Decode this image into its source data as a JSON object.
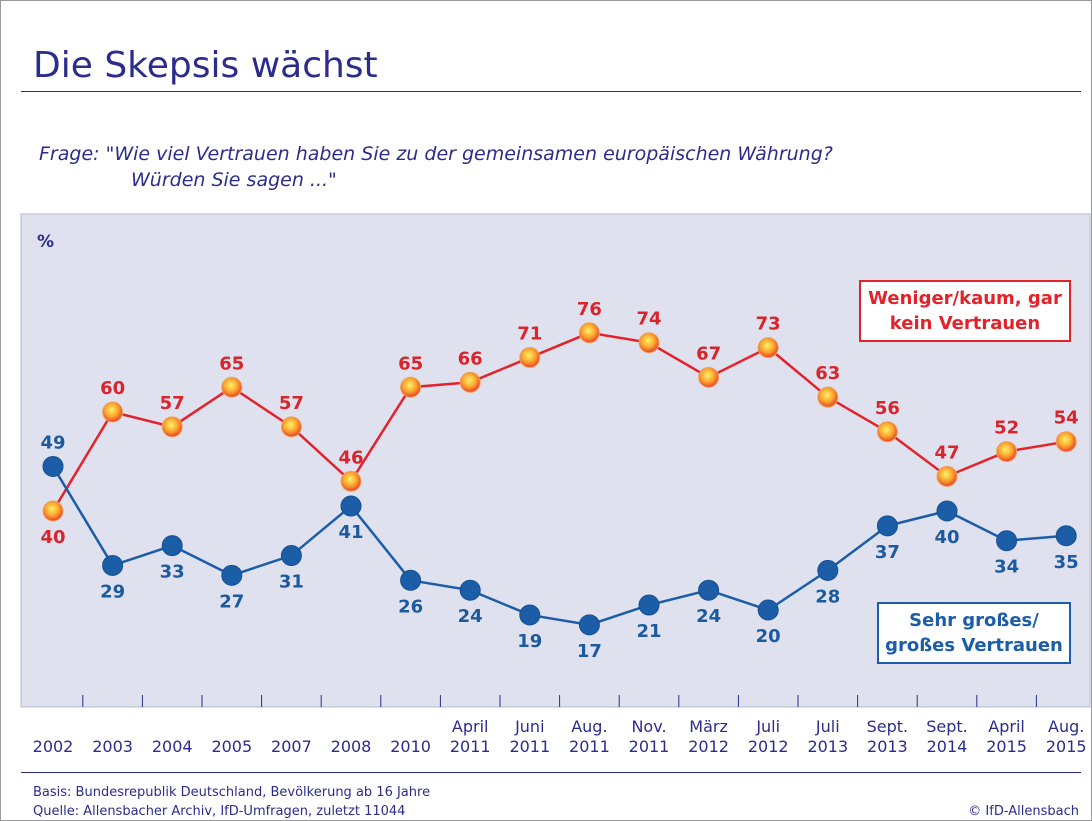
{
  "chart_data": {
    "type": "line",
    "title": "Die Skepsis wächst",
    "subtitle": [
      "Frage: \"Wie viel Vertrauen haben Sie zu der gemeinsamen europäischen Währung?",
      "Würden Sie sagen ...\""
    ],
    "ylabel": "%",
    "categories": [
      "2002",
      "2003",
      "2004",
      "2005",
      "2007",
      "2008",
      "2010",
      "April 2011",
      "Juni 2011",
      "Aug. 2011",
      "Nov. 2011",
      "März 2012",
      "Juli 2012",
      "Juli 2013",
      "Sept. 2013",
      "Sept. 2014",
      "April 2015",
      "Aug. 2015"
    ],
    "series": [
      {
        "name": "Weniger/kaum, gar kein Vertrauen",
        "color": "#e3222b",
        "values": [
          40,
          60,
          57,
          65,
          57,
          46,
          65,
          66,
          71,
          76,
          74,
          67,
          73,
          63,
          56,
          47,
          52,
          54
        ]
      },
      {
        "name": "Sehr großes/ großes Vertrauen",
        "color": "#1c5da8",
        "values": [
          49,
          29,
          33,
          27,
          31,
          41,
          26,
          24,
          19,
          17,
          21,
          24,
          20,
          28,
          37,
          40,
          34,
          35
        ]
      }
    ],
    "ylim": [
      0,
      100
    ],
    "footnotes": [
      "Basis: Bundesrepublik Deutschland, Bevölkerung ab 16 Jahre",
      "Quelle: Allensbacher Archiv, IfD-Umfragen, zuletzt 11044"
    ],
    "credit": "© IfD-Allensbach"
  }
}
